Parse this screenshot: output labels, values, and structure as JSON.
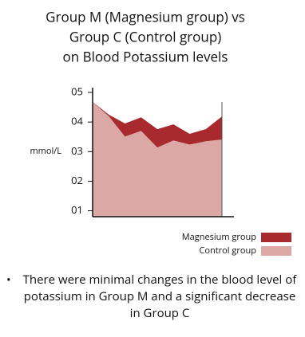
{
  "chart_data": {
    "type": "area",
    "title": [
      "Group M (Magnesium group) vs",
      "Group C (Control group)",
      "on  Blood Potassium levels"
    ],
    "ylabel": "mmol/L",
    "categories": [
      null,
      null,
      null,
      null,
      null,
      null,
      null,
      null,
      null
    ],
    "series": [
      {
        "name": "Magnesium group",
        "color": "#a8292e",
        "values": [
          4.68,
          4.25,
          3.95,
          4.16,
          3.76,
          3.92,
          3.6,
          3.76,
          4.19
        ]
      },
      {
        "name": "Control group",
        "color": "#dba8a6",
        "values": [
          4.68,
          4.2,
          3.51,
          3.7,
          3.14,
          3.38,
          3.24,
          3.35,
          3.41
        ]
      }
    ],
    "ylim": [
      0.8,
      5.2
    ],
    "yticks": [
      {
        "value": 1,
        "label": "01"
      },
      {
        "value": 2,
        "label": "02"
      },
      {
        "value": 3,
        "label": "03"
      },
      {
        "value": 4,
        "label": "04"
      },
      {
        "value": 5,
        "label": "05"
      }
    ],
    "legend": "bottom-right",
    "note": "There were minimal changes in the blood level of potassium in Group M and a significant decrease in Group C"
  }
}
